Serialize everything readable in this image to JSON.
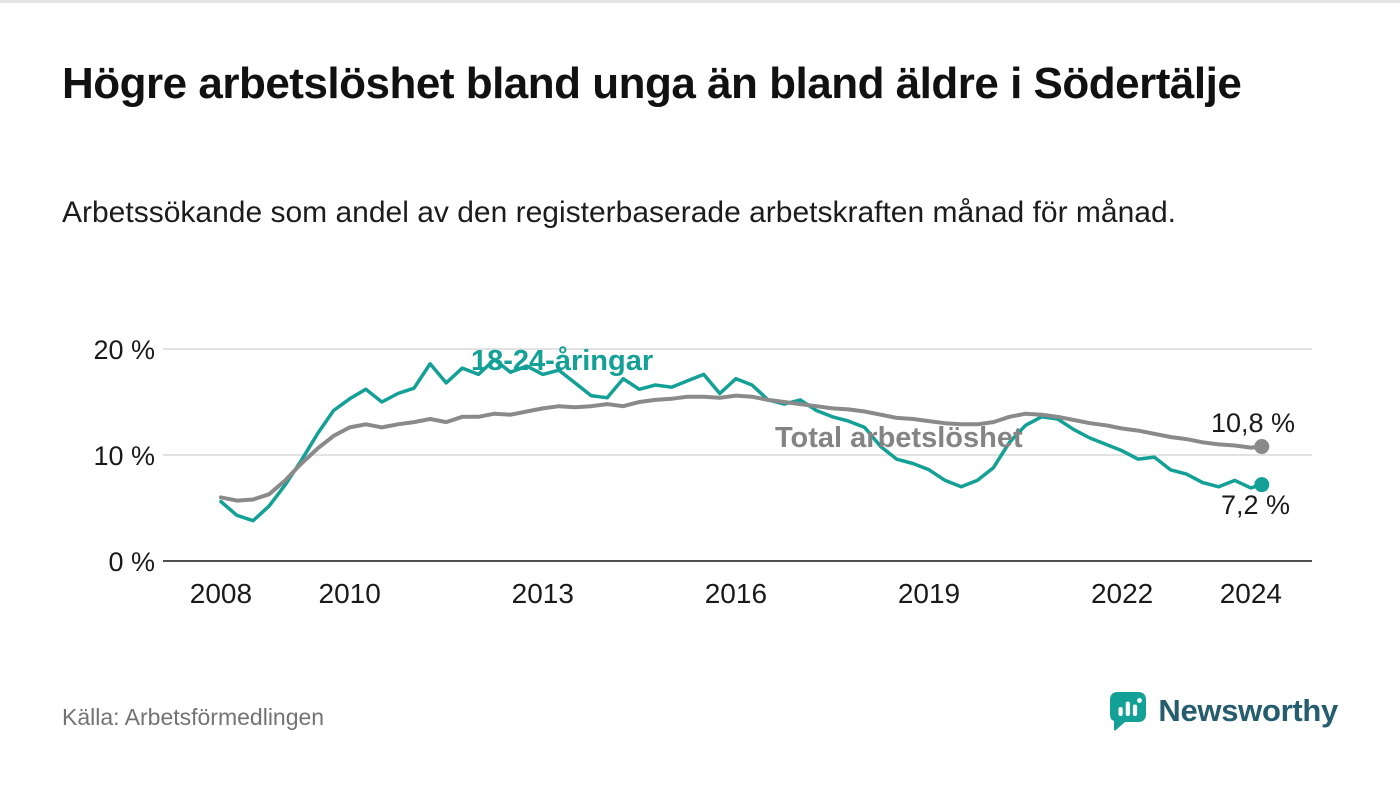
{
  "header": {
    "title": "Högre arbetslöshet bland unga än bland äldre i Södertälje",
    "subtitle": "Arbetssökande som andel av den registerbaserade arbetskraften månad för månad."
  },
  "footer": {
    "source": "Källa: Arbetsförmedlingen",
    "brand": "Newsworthy"
  },
  "colors": {
    "young_line": "#13a096",
    "total_line": "#8a8a8a",
    "gridline": "#d9d9d9",
    "axis": "#4f4f4f",
    "brand_icon": "#13a096",
    "brand_text": "#265d6e"
  },
  "chart_data": {
    "type": "line",
    "title": "Högre arbetslöshet bland unga än bland äldre i Södertälje",
    "xlabel": "",
    "ylabel": "Arbetssökande som andel av den registerbaserade arbetskraften",
    "x_range": [
      2007.1,
      2024.95
    ],
    "y_range": [
      0,
      22
    ],
    "grid": "horizontal",
    "legend_position": "inline-labels",
    "y_ticks": [
      {
        "value": 20,
        "label": "20 %"
      },
      {
        "value": 10,
        "label": "10 %"
      },
      {
        "value": 0,
        "label": "0 %"
      }
    ],
    "x_ticks": [
      {
        "value": 2008,
        "label": "2008"
      },
      {
        "value": 2010,
        "label": "2010"
      },
      {
        "value": 2013,
        "label": "2013"
      },
      {
        "value": 2016,
        "label": "2016"
      },
      {
        "value": 2019,
        "label": "2019"
      },
      {
        "value": 2022,
        "label": "2022"
      },
      {
        "value": 2024,
        "label": "2024"
      }
    ],
    "series": [
      {
        "id": "young",
        "label": "18-24-åringar",
        "color": "#13a096",
        "end_label": "7,2 %",
        "end_value": 7.2,
        "x": [
          2008,
          2008.25,
          2008.5,
          2008.75,
          2009,
          2009.25,
          2009.5,
          2009.75,
          2010,
          2010.25,
          2010.5,
          2010.75,
          2011,
          2011.25,
          2011.5,
          2011.75,
          2012,
          2012.25,
          2012.5,
          2012.75,
          2013,
          2013.25,
          2013.5,
          2013.75,
          2014,
          2014.25,
          2014.5,
          2014.75,
          2015,
          2015.25,
          2015.5,
          2015.75,
          2016,
          2016.25,
          2016.5,
          2016.75,
          2017,
          2017.25,
          2017.5,
          2017.75,
          2018,
          2018.25,
          2018.5,
          2018.75,
          2019,
          2019.25,
          2019.5,
          2019.75,
          2020,
          2020.25,
          2020.5,
          2020.75,
          2021,
          2021.25,
          2021.5,
          2021.75,
          2022,
          2022.25,
          2022.5,
          2022.75,
          2023,
          2023.25,
          2023.5,
          2023.75,
          2024,
          2024.17
        ],
        "y": [
          5.6,
          4.3,
          3.8,
          5.2,
          7.2,
          9.5,
          12.0,
          14.2,
          15.3,
          16.2,
          15.0,
          15.8,
          16.3,
          18.6,
          16.8,
          18.2,
          17.6,
          19.0,
          17.8,
          18.4,
          17.6,
          18.0,
          16.8,
          15.6,
          15.4,
          17.2,
          16.2,
          16.6,
          16.4,
          17.0,
          17.6,
          15.8,
          17.2,
          16.6,
          15.2,
          14.8,
          15.2,
          14.2,
          13.6,
          13.2,
          12.6,
          10.8,
          9.6,
          9.2,
          8.6,
          7.6,
          7.0,
          7.6,
          8.8,
          11.2,
          12.8,
          13.6,
          13.4,
          12.4,
          11.6,
          11.0,
          10.4,
          9.6,
          9.8,
          8.6,
          8.2,
          7.4,
          7.0,
          7.6,
          6.9,
          7.2
        ]
      },
      {
        "id": "total",
        "label": "Total arbetslöshet",
        "color": "#8a8a8a",
        "end_label": "10,8 %",
        "end_value": 10.8,
        "x": [
          2008,
          2008.25,
          2008.5,
          2008.75,
          2009,
          2009.25,
          2009.5,
          2009.75,
          2010,
          2010.25,
          2010.5,
          2010.75,
          2011,
          2011.25,
          2011.5,
          2011.75,
          2012,
          2012.25,
          2012.5,
          2012.75,
          2013,
          2013.25,
          2013.5,
          2013.75,
          2014,
          2014.25,
          2014.5,
          2014.75,
          2015,
          2015.25,
          2015.5,
          2015.75,
          2016,
          2016.25,
          2016.5,
          2016.75,
          2017,
          2017.25,
          2017.5,
          2017.75,
          2018,
          2018.25,
          2018.5,
          2018.75,
          2019,
          2019.25,
          2019.5,
          2019.75,
          2020,
          2020.25,
          2020.5,
          2020.75,
          2021,
          2021.25,
          2021.5,
          2021.75,
          2022,
          2022.25,
          2022.5,
          2022.75,
          2023,
          2023.25,
          2023.5,
          2023.75,
          2024,
          2024.17
        ],
        "y": [
          6.0,
          5.7,
          5.8,
          6.3,
          7.6,
          9.2,
          10.6,
          11.8,
          12.6,
          12.9,
          12.6,
          12.9,
          13.1,
          13.4,
          13.1,
          13.6,
          13.6,
          13.9,
          13.8,
          14.1,
          14.4,
          14.6,
          14.5,
          14.6,
          14.8,
          14.6,
          15.0,
          15.2,
          15.3,
          15.5,
          15.5,
          15.4,
          15.6,
          15.5,
          15.2,
          15.0,
          14.8,
          14.6,
          14.4,
          14.3,
          14.1,
          13.8,
          13.5,
          13.4,
          13.2,
          13.0,
          12.9,
          12.9,
          13.1,
          13.6,
          13.9,
          13.8,
          13.6,
          13.3,
          13.0,
          12.8,
          12.5,
          12.3,
          12.0,
          11.7,
          11.5,
          11.2,
          11.0,
          10.9,
          10.7,
          10.8
        ]
      }
    ]
  }
}
